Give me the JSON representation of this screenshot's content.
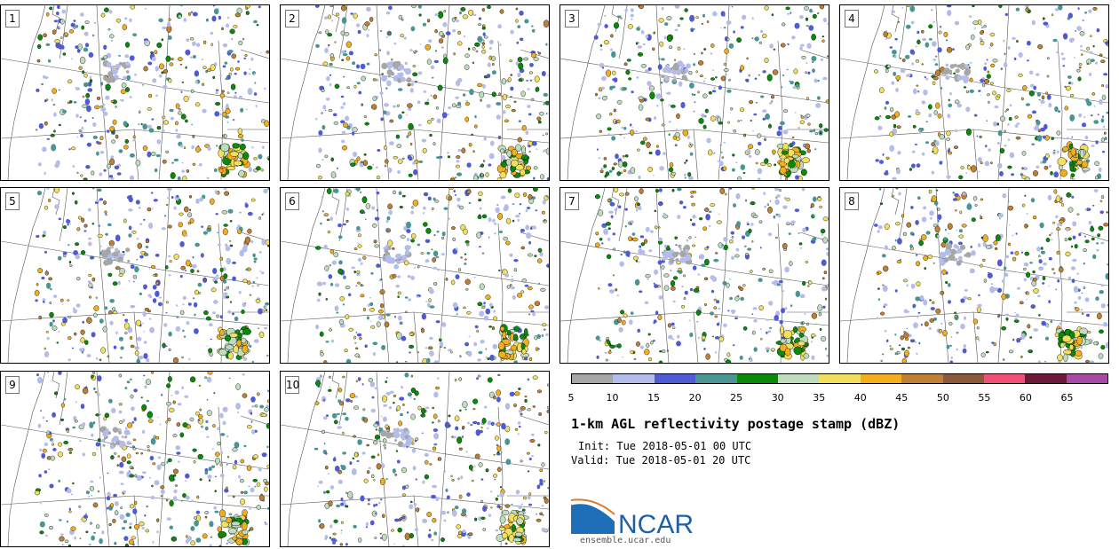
{
  "panels": [
    {
      "label": "1"
    },
    {
      "label": "2"
    },
    {
      "label": "3"
    },
    {
      "label": "4"
    },
    {
      "label": "5"
    },
    {
      "label": "6"
    },
    {
      "label": "7"
    },
    {
      "label": "8"
    },
    {
      "label": "9"
    },
    {
      "label": "10"
    }
  ],
  "colorbar": {
    "colors": [
      "#a6a6a6",
      "#b4bcea",
      "#4f5bd5",
      "#4a9494",
      "#0a8a0a",
      "#bedcbe",
      "#f2de5f",
      "#f2ae1c",
      "#bd8034",
      "#8a5a3c",
      "#ee5078",
      "#6b1a3a",
      "#a64aa6"
    ],
    "ticks": [
      "5",
      "10",
      "15",
      "20",
      "25",
      "30",
      "35",
      "40",
      "45",
      "50",
      "55",
      "60",
      "65"
    ]
  },
  "title": "1-km AGL reflectivity postage stamp (dBZ)",
  "init": "Init: Tue 2018-05-01 00 UTC",
  "valid": "Valid: Tue 2018-05-01 20 UTC",
  "logo": {
    "text": "NCAR",
    "url": "ensemble.ucar.edu"
  }
}
